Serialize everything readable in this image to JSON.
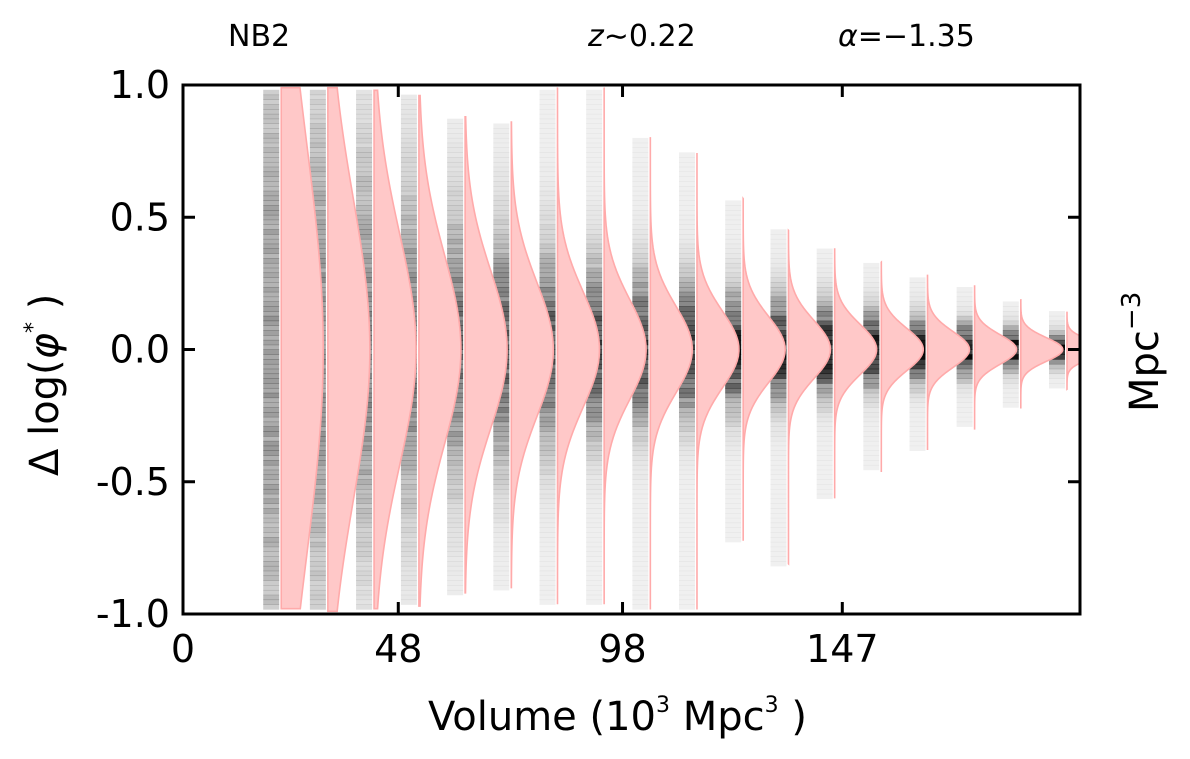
{
  "chart_data": {
    "type": "heatmap",
    "annotations": {
      "field": "NB2",
      "redshift_symbol": "z",
      "redshift_rest": "∼0.22",
      "alpha_symbol": "α",
      "alpha_rest": "=−1.35"
    },
    "xlabel": {
      "pre": "Volume (10",
      "sup1": "3",
      "mid": " Mpc",
      "sup2": "3",
      "post": " )"
    },
    "ylabel": {
      "pre": "Δ log(",
      "phi": "φ",
      "sup": "*",
      "post": " )"
    },
    "right_label": {
      "base": "Mpc",
      "sup": "−3"
    },
    "xlim": [
      0,
      200
    ],
    "ylim": [
      -1.0,
      1.0
    ],
    "x_ticks": [
      {
        "value": 0,
        "label": "0"
      },
      {
        "value": 48,
        "label": "48"
      },
      {
        "value": 98,
        "label": "98"
      },
      {
        "value": 147,
        "label": "147"
      }
    ],
    "y_ticks": [
      {
        "value": 1.0,
        "label": "1.0"
      },
      {
        "value": 0.5,
        "label": "0.5"
      },
      {
        "value": 0.0,
        "label": "0.0"
      },
      {
        "value": -0.5,
        "label": "-0.5"
      },
      {
        "value": -1.0,
        "label": "-1.0"
      }
    ],
    "colors": {
      "kde_fill": "#ffc8c8",
      "kde_edge": "#ffaaaa",
      "density": "#000000",
      "axes": "#000000"
    },
    "series": [
      {
        "volume": 21.9,
        "sigma": 0.78,
        "extent": [
          -0.98,
          0.99
        ]
      },
      {
        "volume": 32.3,
        "sigma": 0.57,
        "extent": [
          -0.99,
          0.99
        ]
      },
      {
        "volume": 42.6,
        "sigma": 0.44,
        "extent": [
          -0.98,
          0.98
        ]
      },
      {
        "volume": 52.6,
        "sigma": 0.36,
        "extent": [
          -0.97,
          0.96
        ]
      },
      {
        "volume": 62.9,
        "sigma": 0.3,
        "extent": [
          -0.92,
          0.88
        ]
      },
      {
        "volume": 73.2,
        "sigma": 0.255,
        "extent": [
          -0.9,
          0.86
        ]
      },
      {
        "volume": 83.5,
        "sigma": 0.22,
        "extent": [
          -0.96,
          0.99
        ]
      },
      {
        "volume": 93.9,
        "sigma": 0.19,
        "extent": [
          -0.96,
          0.99
        ]
      },
      {
        "volume": 104.2,
        "sigma": 0.165,
        "extent": [
          -0.98,
          0.8
        ]
      },
      {
        "volume": 114.6,
        "sigma": 0.145,
        "extent": [
          -0.98,
          0.74
        ]
      },
      {
        "volume": 124.9,
        "sigma": 0.125,
        "extent": [
          -0.72,
          0.57
        ]
      },
      {
        "volume": 135.0,
        "sigma": 0.11,
        "extent": [
          -0.81,
          0.45
        ]
      },
      {
        "volume": 145.3,
        "sigma": 0.095,
        "extent": [
          -0.56,
          0.38
        ]
      },
      {
        "volume": 155.7,
        "sigma": 0.08,
        "extent": [
          -0.46,
          0.33
        ]
      },
      {
        "volume": 166.0,
        "sigma": 0.068,
        "extent": [
          -0.38,
          0.28
        ]
      },
      {
        "volume": 176.5,
        "sigma": 0.056,
        "extent": [
          -0.3,
          0.24
        ]
      },
      {
        "volume": 186.8,
        "sigma": 0.045,
        "extent": [
          -0.22,
          0.19
        ]
      },
      {
        "volume": 197.1,
        "sigma": 0.034,
        "extent": [
          -0.15,
          0.14
        ]
      }
    ]
  }
}
